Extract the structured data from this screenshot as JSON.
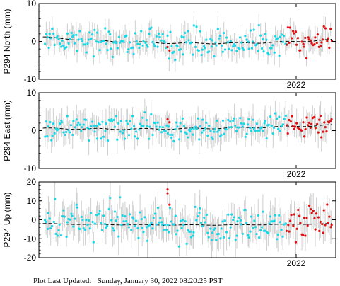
{
  "footer": {
    "label": "Plot Last Updated:",
    "timestamp": "Sunday, January 30, 2022 08:20:25 PST"
  },
  "colors": {
    "recent_points": "#e01010",
    "older_points": "#18d8e8",
    "error_bars": "#cfcfcf",
    "model_line": "#000000"
  },
  "chart_data": [
    {
      "type": "scatter",
      "ylabel": "P294 North (mm)",
      "ylim": [
        -10,
        10
      ],
      "yticks": [
        10,
        0,
        -10
      ],
      "xtick_label": "2022",
      "x_range_years": [
        2020.7,
        2022.2
      ],
      "xtick_value": 2022.0,
      "trend": {
        "start": 1.2,
        "mid_low": -1.8,
        "end": 0.5
      },
      "points": {
        "older_level": 0.0,
        "scatter_mm": 1.8,
        "error_mm": 2.5
      },
      "recent_points_start": 2021.95,
      "extra_points": [
        {
          "x": 2021.35,
          "y": -1.5
        },
        {
          "x": 2021.36,
          "y": -2.4
        }
      ]
    },
    {
      "type": "scatter",
      "ylabel": "P294 East (mm)",
      "ylim": [
        -10,
        10
      ],
      "yticks": [
        10,
        0,
        -10
      ],
      "xtick_label": "2022",
      "x_range_years": [
        2020.7,
        2022.2
      ],
      "xtick_value": 2022.0,
      "trend": {
        "start": 0.6,
        "mid_low": 0.0,
        "end": 1.5
      },
      "points": {
        "older_level": 0.3,
        "scatter_mm": 1.6,
        "error_mm": 3.0
      },
      "recent_points_start": 2021.95,
      "extra_points": [
        {
          "x": 2021.35,
          "y": 3.0
        },
        {
          "x": 2021.36,
          "y": 2.2
        }
      ]
    },
    {
      "type": "scatter",
      "ylabel": "P294 Up (mm)",
      "ylim": [
        -20,
        20
      ],
      "yticks": [
        20,
        10,
        0,
        -10,
        -20
      ],
      "xtick_label": "2022",
      "x_range_years": [
        2020.7,
        2022.2
      ],
      "xtick_value": 2022.0,
      "trend": {
        "start": -2.0,
        "mid_low": -3.5,
        "end": -2.0
      },
      "points": {
        "older_level": 1.0,
        "scatter_mm": 5.0,
        "error_mm": 7.0
      },
      "recent_points_start": 2021.95,
      "extra_points": [
        {
          "x": 2021.35,
          "y": 16.0
        },
        {
          "x": 2021.36,
          "y": 8.0
        },
        {
          "x": 2021.35,
          "y": 14.0
        }
      ]
    }
  ]
}
